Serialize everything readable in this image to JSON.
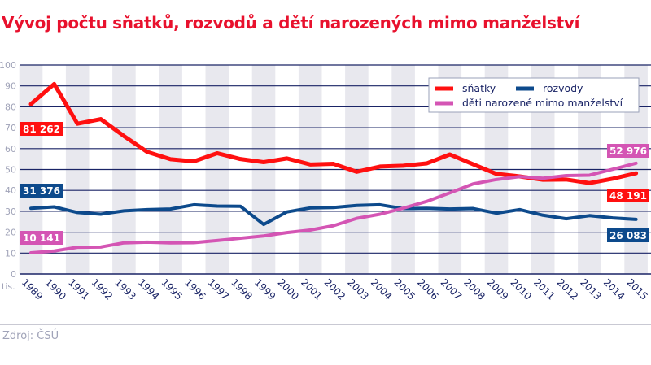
{
  "title": "Vývoj počtu sňatků, rozvodů a dětí narozených mimo manželství",
  "source": "Zdroj: ČSÚ",
  "chart_data": {
    "type": "line",
    "title": "Vývoj počtu sňatků, rozvodů a dětí narozených mimo manželství",
    "ylabel": "tis.",
    "ylim": [
      0,
      100
    ],
    "yticks": [
      0,
      10,
      20,
      30,
      40,
      50,
      60,
      70,
      80,
      90,
      100
    ],
    "grid": true,
    "legend": "top-right",
    "x": [
      "1989",
      "1990",
      "1991",
      "1992",
      "1993",
      "1994",
      "1995",
      "1996",
      "1997",
      "1998",
      "1999",
      "2000",
      "2001",
      "2002",
      "2003",
      "2004",
      "2005",
      "2006",
      "2007",
      "2008",
      "2009",
      "2010",
      "2011",
      "2012",
      "2013",
      "2014",
      "2015"
    ],
    "series": [
      {
        "name": "sňatky",
        "color": "#ff1010",
        "values": [
          81.3,
          90.9,
          71.9,
          74.1,
          66.0,
          58.4,
          54.9,
          53.9,
          57.8,
          55.0,
          53.5,
          55.3,
          52.4,
          52.7,
          48.9,
          51.4,
          51.8,
          52.9,
          57.2,
          52.5,
          47.9,
          46.7,
          45.1,
          45.2,
          43.5,
          45.6,
          48.2
        ],
        "start_label": "81 262",
        "end_label": "48 191"
      },
      {
        "name": "rozvody",
        "color": "#0d4a8c",
        "values": [
          31.4,
          32.1,
          29.4,
          28.6,
          30.2,
          30.8,
          31.1,
          33.1,
          32.5,
          32.4,
          23.7,
          29.7,
          31.6,
          31.8,
          32.8,
          33.1,
          31.3,
          31.4,
          31.1,
          31.3,
          29.1,
          30.8,
          28.1,
          26.4,
          27.9,
          26.8,
          26.1
        ],
        "start_label": "31 376",
        "end_label": "26 083"
      },
      {
        "name": "děti narozené mimo manželství",
        "color": "#d455b4",
        "values": [
          10.1,
          11.0,
          12.8,
          12.9,
          14.9,
          15.2,
          14.9,
          15.0,
          16.0,
          17.1,
          18.2,
          19.8,
          21.0,
          23.1,
          26.6,
          28.6,
          31.5,
          34.7,
          38.8,
          43.1,
          45.2,
          46.6,
          45.8,
          47.1,
          47.3,
          50.1,
          53.0
        ],
        "start_label": "10 141",
        "end_label": "52 976"
      }
    ]
  }
}
